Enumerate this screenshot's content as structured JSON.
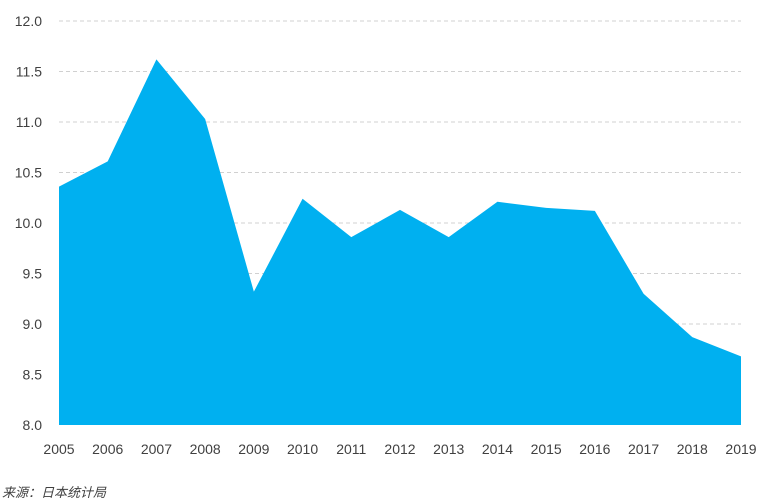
{
  "chart_data": {
    "type": "area",
    "x": [
      "2005",
      "2006",
      "2007",
      "2008",
      "2009",
      "2010",
      "2011",
      "2012",
      "2013",
      "2014",
      "2015",
      "2016",
      "2017",
      "2018",
      "2019"
    ],
    "series": [
      {
        "values": [
          10.36,
          10.61,
          11.62,
          11.03,
          9.32,
          10.24,
          9.86,
          10.13,
          9.86,
          10.21,
          10.15,
          10.12,
          9.3,
          8.87,
          8.68
        ]
      }
    ],
    "title": "",
    "xlabel": "",
    "ylabel": "",
    "ylim": [
      8.0,
      12.0
    ],
    "yticks": [
      "8.0",
      "8.5",
      "9.0",
      "9.5",
      "10.0",
      "10.5",
      "11.0",
      "11.5",
      "12.0"
    ],
    "grid": true,
    "legend": "none",
    "fill_color": "#00B0F0"
  },
  "source": "来源：日本统计局"
}
